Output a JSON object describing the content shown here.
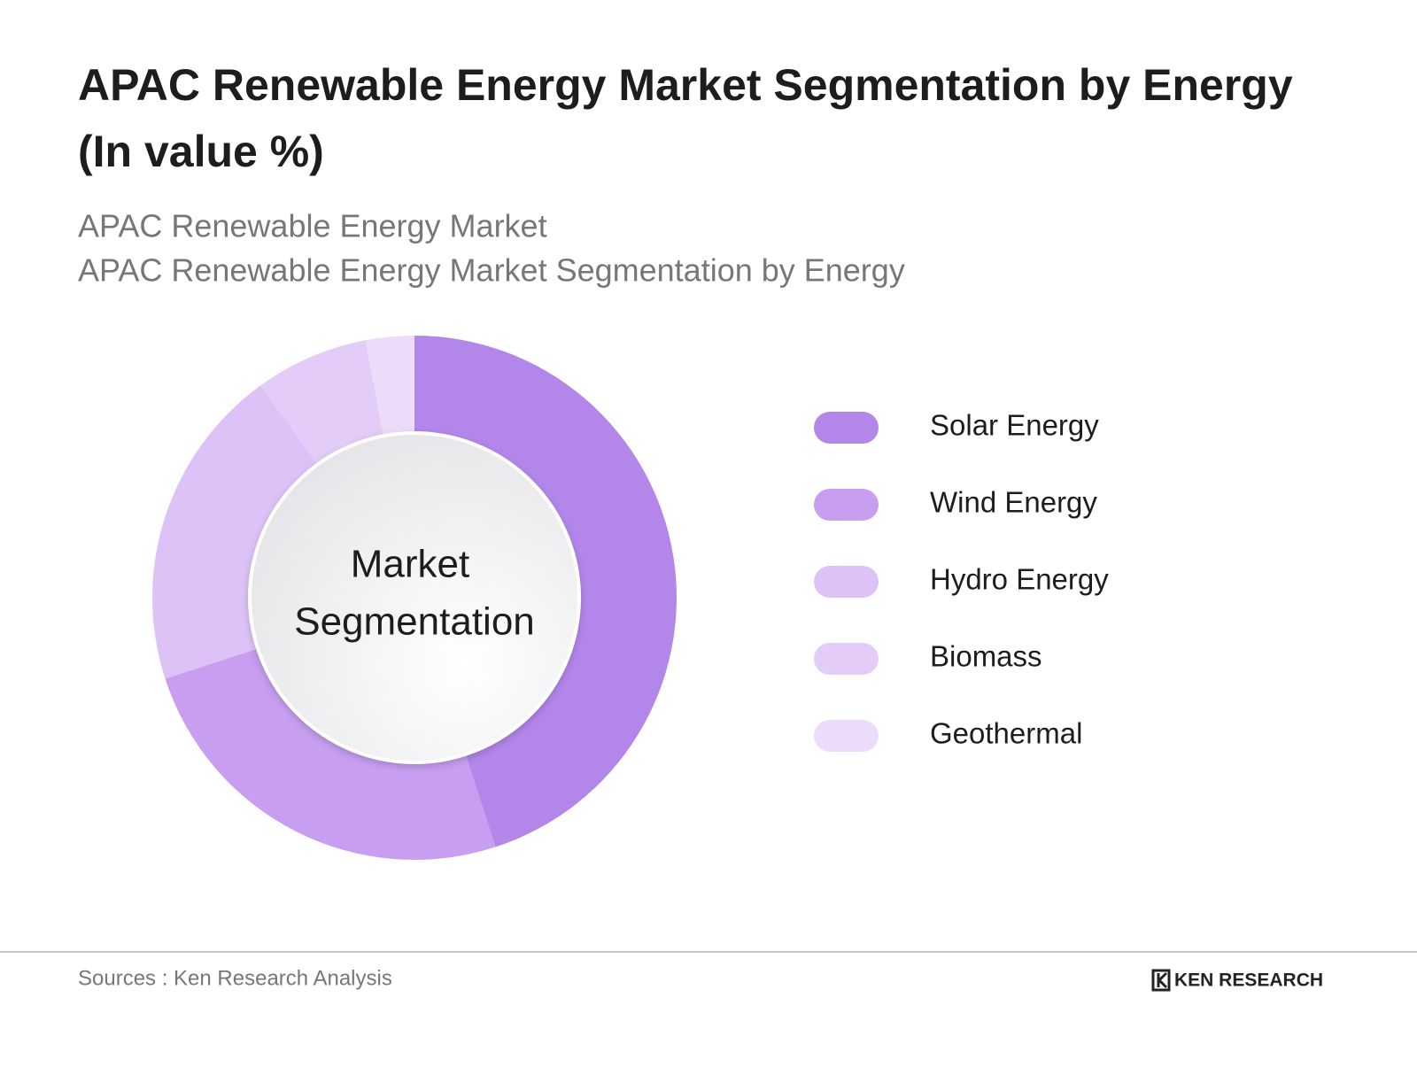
{
  "chart_data": {
    "type": "donut",
    "title": "APAC Renewable Energy Market Segmentation by Energy",
    "title_unit": "(In value %)",
    "subtitles": [
      "APAC Renewable Energy Market",
      "APAC Renewable Energy Market Segmentation by Energy"
    ],
    "center_label": [
      "Market",
      "Segmentation"
    ],
    "categories": [
      "Solar Energy",
      "Wind Energy",
      "Hydro Energy",
      "Biomass",
      "Geothermal"
    ],
    "values": [
      45,
      25,
      20,
      7,
      3
    ],
    "colors": [
      "#b386ea",
      "#c79ef0",
      "#dcc2f6",
      "#e3ccf7",
      "#ecdcfa"
    ]
  },
  "footer": {
    "source": "Sources : Ken Research Analysis",
    "logo": "KEN RESEARCH"
  }
}
